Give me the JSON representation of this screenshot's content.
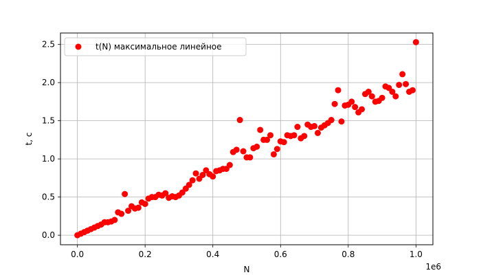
{
  "chart_data": {
    "type": "scatter",
    "title": "",
    "xlabel": "N",
    "ylabel": "t, c",
    "x_offset_label": "1e6",
    "xlim": [
      -0.05,
      1.05
    ],
    "ylim": [
      -0.125,
      2.65
    ],
    "x_unit_scale": 1000000,
    "xticks": [
      0.0,
      0.2,
      0.4,
      0.6,
      0.8,
      1.0
    ],
    "xtick_labels": [
      "0.0",
      "0.2",
      "0.4",
      "0.6",
      "0.8",
      "1.0"
    ],
    "yticks": [
      0.0,
      0.5,
      1.0,
      1.5,
      2.0,
      2.5
    ],
    "ytick_labels": [
      "0.0",
      "0.5",
      "1.0",
      "1.5",
      "2.0",
      "2.5"
    ],
    "grid": true,
    "legend_position": "top-left",
    "series": [
      {
        "name": "t(N) максимальное линейное",
        "color": "#ff0000",
        "marker": "circle",
        "x": [
          0,
          10000,
          20000,
          30000,
          40000,
          50000,
          60000,
          70000,
          80000,
          90000,
          100000,
          110000,
          120000,
          130000,
          140000,
          150000,
          160000,
          170000,
          180000,
          190000,
          200000,
          210000,
          220000,
          230000,
          240000,
          250000,
          260000,
          270000,
          280000,
          290000,
          300000,
          310000,
          320000,
          330000,
          340000,
          350000,
          360000,
          370000,
          380000,
          390000,
          400000,
          410000,
          420000,
          430000,
          440000,
          450000,
          460000,
          470000,
          480000,
          490000,
          500000,
          510000,
          520000,
          530000,
          540000,
          550000,
          560000,
          570000,
          580000,
          590000,
          600000,
          610000,
          620000,
          630000,
          640000,
          650000,
          660000,
          670000,
          680000,
          690000,
          700000,
          710000,
          720000,
          730000,
          740000,
          750000,
          760000,
          770000,
          780000,
          790000,
          800000,
          810000,
          820000,
          830000,
          840000,
          850000,
          860000,
          870000,
          880000,
          890000,
          900000,
          910000,
          920000,
          930000,
          940000,
          950000,
          960000,
          970000,
          980000,
          990000,
          1000000
        ],
        "y": [
          0.0,
          0.02,
          0.04,
          0.06,
          0.08,
          0.1,
          0.12,
          0.14,
          0.17,
          0.17,
          0.18,
          0.2,
          0.3,
          0.28,
          0.54,
          0.32,
          0.38,
          0.35,
          0.36,
          0.43,
          0.41,
          0.48,
          0.5,
          0.5,
          0.53,
          0.52,
          0.55,
          0.49,
          0.51,
          0.5,
          0.52,
          0.56,
          0.61,
          0.66,
          0.72,
          0.81,
          0.74,
          0.79,
          0.85,
          0.8,
          0.77,
          0.84,
          0.85,
          0.87,
          0.87,
          0.92,
          1.09,
          1.12,
          1.51,
          1.1,
          1.02,
          1.02,
          1.14,
          1.16,
          1.38,
          1.25,
          1.25,
          1.31,
          1.06,
          1.13,
          1.23,
          1.22,
          1.31,
          1.3,
          1.31,
          1.42,
          1.27,
          1.3,
          1.45,
          1.42,
          1.43,
          1.34,
          1.41,
          1.44,
          1.47,
          1.51,
          1.72,
          1.9,
          1.49,
          1.7,
          1.71,
          1.75,
          1.68,
          1.61,
          1.65,
          1.85,
          1.88,
          1.82,
          1.75,
          1.76,
          1.8,
          1.95,
          1.93,
          1.88,
          1.82,
          1.97,
          2.11,
          1.98,
          1.88,
          1.9,
          2.53
        ]
      }
    ]
  }
}
